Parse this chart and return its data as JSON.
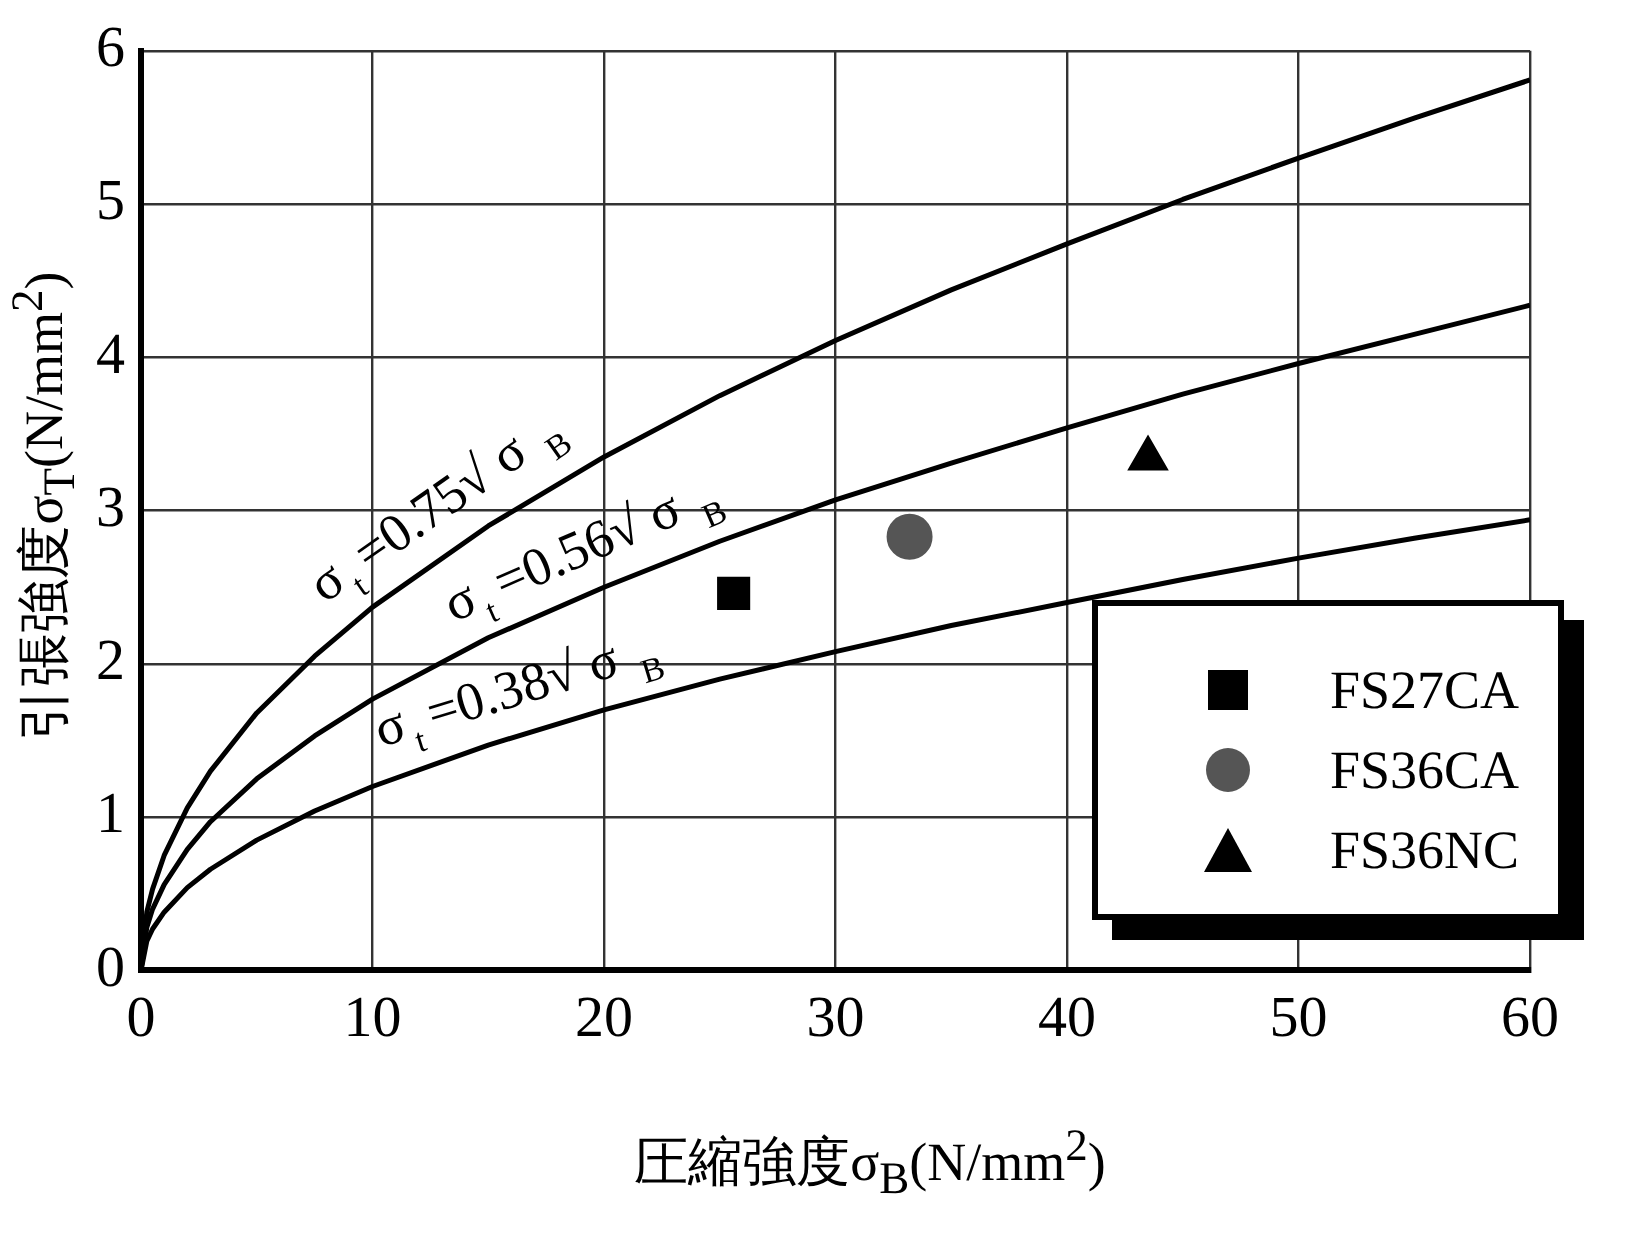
{
  "chart_data": {
    "type": "scatter",
    "xlabel": "圧縮強度σ$_{B}$(N/mm$^{2}$)",
    "ylabel": "引張強度σ$_{T}$(N/mm$^{2}$)",
    "xlim": [
      0,
      60
    ],
    "xticks": [
      0,
      10,
      20,
      30,
      40,
      50,
      60
    ],
    "ylim": [
      0,
      6
    ],
    "yticks": [
      0,
      1,
      2,
      3,
      4,
      5,
      6
    ],
    "grid": true,
    "legend": "bottom right",
    "series": [
      {
        "type": "line",
        "color": "#000000",
        "marker": "none",
        "x": [
          0,
          0.25,
          0.5,
          1,
          2,
          3,
          5,
          7.5,
          10,
          15,
          20,
          25,
          30,
          35,
          40,
          45,
          50,
          55,
          60
        ],
        "values": [
          0,
          0.38,
          0.53,
          0.75,
          1.06,
          1.3,
          1.68,
          2.05,
          2.37,
          2.9,
          3.35,
          3.75,
          4.11,
          4.44,
          4.74,
          5.03,
          5.3,
          5.56,
          5.81
        ]
      },
      {
        "type": "line",
        "color": "#000000",
        "marker": "none",
        "x": [
          0,
          0.25,
          0.5,
          1,
          2,
          3,
          5,
          7.5,
          10,
          15,
          20,
          25,
          30,
          35,
          40,
          45,
          50,
          55,
          60
        ],
        "values": [
          0,
          0.28,
          0.4,
          0.56,
          0.79,
          0.97,
          1.25,
          1.53,
          1.77,
          2.17,
          2.5,
          2.8,
          3.07,
          3.31,
          3.54,
          3.76,
          3.96,
          4.15,
          4.34
        ]
      },
      {
        "type": "line",
        "color": "#000000",
        "marker": "none",
        "x": [
          0,
          0.25,
          0.5,
          1,
          2,
          3,
          5,
          7.5,
          10,
          15,
          20,
          25,
          30,
          35,
          40,
          45,
          50,
          55,
          60
        ],
        "values": [
          0,
          0.19,
          0.27,
          0.38,
          0.54,
          0.66,
          0.85,
          1.04,
          1.2,
          1.47,
          1.7,
          1.9,
          2.08,
          2.25,
          2.4,
          2.55,
          2.69,
          2.82,
          2.94
        ]
      },
      {
        "name": "FS27CA",
        "color": "#000000",
        "marker": "square",
        "x": [
          25.6
        ],
        "values": [
          2.46
        ]
      },
      {
        "name": "FS36CA",
        "color": "#555555",
        "marker": "circle",
        "x": [
          33.2
        ],
        "values": [
          2.83
        ]
      },
      {
        "name": "FS36NC",
        "color": "#000000",
        "marker": "triangle",
        "x": [
          43.5
        ],
        "values": [
          3.34
        ]
      }
    ],
    "annotations": [
      {
        "text": "σ$_{t}$=0.75√ σ $_{B}$",
        "x": 14,
        "y": 2.81
      },
      {
        "text": "σ$_{t}$=0.56√ σ $_{B}$",
        "x": 20,
        "y": 2.5
      },
      {
        "text": "σ$_{t}$=0.38√ σ $_{B}$",
        "x": 17,
        "y": 1.57
      }
    ]
  }
}
